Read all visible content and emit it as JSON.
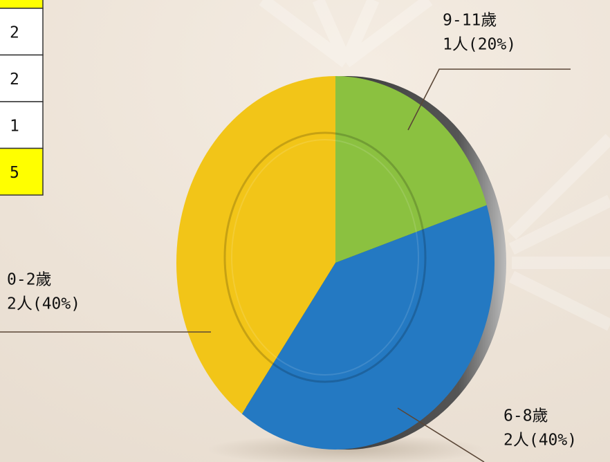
{
  "table": {
    "cells": [
      2,
      2,
      1,
      5
    ]
  },
  "chart_data": {
    "type": "pie",
    "categories": [
      "9-11歲",
      "6-8歲",
      "0-2歲"
    ],
    "values": [
      1,
      2,
      2
    ],
    "value_labels": [
      "1人(20%)",
      "2人(40%)",
      "2人(40%)"
    ],
    "colors": [
      "#8bc140",
      "#2479c2",
      "#f2c518"
    ]
  }
}
